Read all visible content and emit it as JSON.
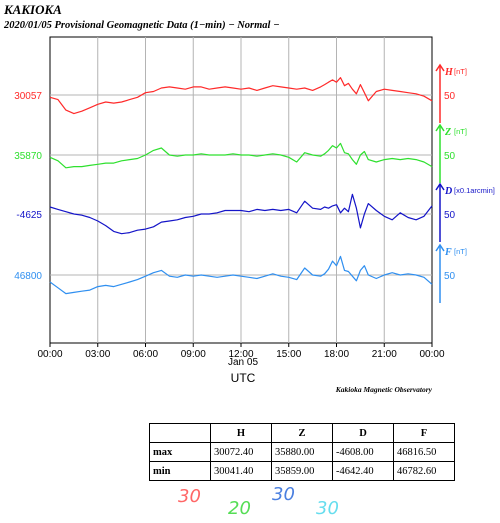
{
  "header": {
    "station": "KAKIOKA",
    "subtitle": "2020/01/05  Provisional Geomagnetic Data (1−min)  − Normal −"
  },
  "footer": {
    "observatory": "Kakioka Magnetic Observatory",
    "date_label": "Jan 05",
    "axis_label": "UTC"
  },
  "chart_data": {
    "type": "line",
    "title": "2020/01/05  Provisional Geomagnetic Data (1−min)  − Normal −",
    "xlabel": "UTC",
    "x_ticks": [
      "00:00",
      "03:00",
      "06:00",
      "09:00",
      "12:00",
      "15:00",
      "18:00",
      "21:00",
      "00:00"
    ],
    "xlim_hours": [
      0,
      24
    ],
    "grid": true,
    "series": [
      {
        "name": "H",
        "unit": "[nT]",
        "baseline_label": "30057",
        "scale_label": "50",
        "color": "#ff2a2a",
        "x": [
          0,
          0.5,
          1,
          1.5,
          2,
          2.5,
          3,
          3.5,
          4,
          4.5,
          5,
          5.5,
          6,
          6.5,
          7,
          7.5,
          8,
          8.5,
          9,
          9.5,
          10,
          10.5,
          11,
          11.5,
          12,
          12.5,
          13,
          13.5,
          14,
          14.5,
          15,
          15.5,
          16,
          16.5,
          17,
          17.25,
          17.5,
          17.75,
          18,
          18.25,
          18.5,
          18.75,
          19,
          19.25,
          19.5,
          19.75,
          20,
          20.5,
          21,
          21.5,
          22,
          22.5,
          23,
          23.5,
          24
        ],
        "y": [
          30055,
          30053,
          30044,
          30041,
          30043,
          30046,
          30049,
          30051,
          30050,
          30051,
          30053,
          30055,
          30059,
          30060,
          30063,
          30064,
          30063,
          30062,
          30064,
          30064,
          30062,
          30063,
          30064,
          30063,
          30062,
          30063,
          30061,
          30063,
          30065,
          30064,
          30063,
          30062,
          30063,
          30061,
          30064,
          30066,
          30068,
          30070,
          30068,
          30072,
          30065,
          30067,
          30062,
          30058,
          30066,
          30059,
          30052,
          30060,
          30062,
          30061,
          30060,
          30059,
          30058,
          30056,
          30052
        ]
      },
      {
        "name": "Z",
        "unit": "[nT]",
        "baseline_label": "35870",
        "scale_label": "50",
        "color": "#2ee02e",
        "x": [
          0,
          0.5,
          1,
          1.5,
          2,
          2.5,
          3,
          3.5,
          4,
          4.5,
          5,
          5.5,
          6,
          6.5,
          7,
          7.5,
          8,
          8.5,
          9,
          9.5,
          10,
          10.5,
          11,
          11.5,
          12,
          12.5,
          13,
          13.5,
          14,
          14.5,
          15,
          15.5,
          16,
          16.5,
          17,
          17.25,
          17.5,
          17.75,
          18,
          18.25,
          18.5,
          18.75,
          19,
          19.25,
          19.5,
          19.75,
          20,
          20.5,
          21,
          21.5,
          22,
          22.5,
          23,
          23.5,
          24
        ],
        "y": [
          35868,
          35865,
          35859,
          35860,
          35860,
          35861,
          35862,
          35863,
          35863,
          35865,
          35866,
          35867,
          35870,
          35874,
          35876,
          35870,
          35869,
          35870,
          35870,
          35871,
          35870,
          35870,
          35870,
          35871,
          35870,
          35870,
          35869,
          35870,
          35871,
          35870,
          35868,
          35864,
          35872,
          35870,
          35869,
          35871,
          35874,
          35878,
          35876,
          35880,
          35872,
          35871,
          35866,
          35862,
          35870,
          35873,
          35866,
          35864,
          35866,
          35867,
          35866,
          35867,
          35866,
          35864,
          35860
        ]
      },
      {
        "name": "D",
        "unit": "[x0.1arcmin]",
        "baseline_label": "-4625",
        "scale_label": "50",
        "color": "#1414c8",
        "x": [
          0,
          0.5,
          1,
          1.5,
          2,
          2.5,
          3,
          3.5,
          4,
          4.5,
          5,
          5.5,
          6,
          6.5,
          7,
          7.5,
          8,
          8.5,
          9,
          9.5,
          10,
          10.5,
          11,
          11.5,
          12,
          12.5,
          13,
          13.5,
          14,
          14.5,
          15,
          15.5,
          16,
          16.5,
          17,
          17.25,
          17.5,
          17.75,
          18,
          18.25,
          18.5,
          18.75,
          19,
          19.25,
          19.5,
          19.75,
          20,
          20.5,
          21,
          21.5,
          22,
          22.5,
          23,
          23.5,
          24
        ],
        "y": [
          -4619,
          -4621,
          -4623,
          -4625,
          -4626,
          -4628,
          -4631,
          -4635,
          -4640,
          -4642,
          -4641,
          -4639,
          -4638,
          -4636,
          -4632,
          -4631,
          -4630,
          -4628,
          -4627,
          -4625,
          -4625,
          -4624,
          -4622,
          -4622,
          -4622,
          -4623,
          -4621,
          -4622,
          -4621,
          -4622,
          -4621,
          -4624,
          -4614,
          -4620,
          -4621,
          -4619,
          -4620,
          -4618,
          -4617,
          -4624,
          -4620,
          -4623,
          -4608,
          -4620,
          -4637,
          -4625,
          -4616,
          -4622,
          -4627,
          -4630,
          -4624,
          -4628,
          -4630,
          -4627,
          -4618
        ]
      },
      {
        "name": "F",
        "unit": "[nT]",
        "baseline_label": "46800",
        "scale_label": "50",
        "color": "#2f8ff0",
        "x": [
          0,
          0.5,
          1,
          1.5,
          2,
          2.5,
          3,
          3.5,
          4,
          4.5,
          5,
          5.5,
          6,
          6.5,
          7,
          7.5,
          8,
          8.5,
          9,
          9.5,
          10,
          10.5,
          11,
          11.5,
          12,
          12.5,
          13,
          13.5,
          14,
          14.5,
          15,
          15.5,
          16,
          16.5,
          17,
          17.25,
          17.5,
          17.75,
          18,
          18.25,
          18.5,
          18.75,
          19,
          19.25,
          19.5,
          19.75,
          20,
          20.5,
          21,
          21.5,
          22,
          22.5,
          23,
          23.5,
          24
        ],
        "y": [
          46794,
          46789,
          46784,
          46785,
          46786,
          46787,
          46790,
          46791,
          46790,
          46792,
          46794,
          46796,
          46799,
          46802,
          46804,
          46799,
          46798,
          46800,
          46799,
          46800,
          46799,
          46798,
          46799,
          46800,
          46799,
          46798,
          46797,
          46799,
          46801,
          46799,
          46798,
          46796,
          46806,
          46800,
          46799,
          46801,
          46805,
          46812,
          46808,
          46816,
          46804,
          46803,
          46799,
          46795,
          46804,
          46808,
          46800,
          46797,
          46800,
          46802,
          46800,
          46801,
          46800,
          46798,
          46792
        ]
      }
    ]
  },
  "stats_table": {
    "headers": [
      "",
      "H",
      "Z",
      "D",
      "F"
    ],
    "rows": [
      {
        "label": "max",
        "values": [
          "30072.40",
          "35880.00",
          "-4608.00",
          "46816.50"
        ]
      },
      {
        "label": "min",
        "values": [
          "30041.40",
          "35859.00",
          "-4642.40",
          "46782.60"
        ]
      }
    ]
  },
  "scale_notes": [
    {
      "text": "30",
      "color": "#ff6666"
    },
    {
      "text": "20",
      "color": "#55dd55"
    },
    {
      "text": "30",
      "color": "#4a7fe0"
    },
    {
      "text": "30",
      "color": "#66ddee"
    }
  ]
}
